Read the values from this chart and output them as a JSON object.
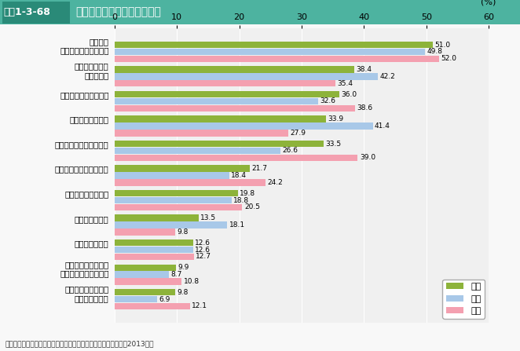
{
  "title": "図表1-3-68　家族の役割として重要なこと",
  "categories": [
    "生活面で\nお互い協力し助け合う",
    "夫または妻との\n愛情を育む",
    "子どもを生み、育てる",
    "経済的に支え合う",
    "喜びや苦労を分かち合う",
    "休息や心の安らぎを得る",
    "皆がともに成長する",
    "家を存続させる",
    "親の世話をする",
    "基本的な生活習慣や\n礼儀作法を身につける",
    "自分らしさや存在を\n認めてもらえる"
  ],
  "全体": [
    51.0,
    38.4,
    36.0,
    33.9,
    33.5,
    21.7,
    19.8,
    13.5,
    12.6,
    9.9,
    9.8
  ],
  "男性": [
    49.8,
    42.2,
    32.6,
    41.4,
    26.6,
    18.4,
    18.8,
    18.1,
    12.6,
    8.7,
    6.9
  ],
  "女性": [
    52.0,
    35.4,
    38.6,
    27.9,
    39.0,
    24.2,
    20.5,
    9.8,
    12.7,
    10.8,
    12.1
  ],
  "colors": {
    "全体": "#8db33a",
    "男性": "#a8c8e8",
    "女性": "#f4a0b0"
  },
  "xlabel": "(%)",
  "xlim": [
    0,
    60
  ],
  "xticks": [
    0,
    10,
    20,
    30,
    40,
    50,
    60
  ],
  "source": "資料：内閣府「家族と地域における子育てに関する意識調査」（2013年）",
  "header_bg": "#4db3a0",
  "header_text_color": "#ffffff",
  "background_color": "#f0f0f0"
}
